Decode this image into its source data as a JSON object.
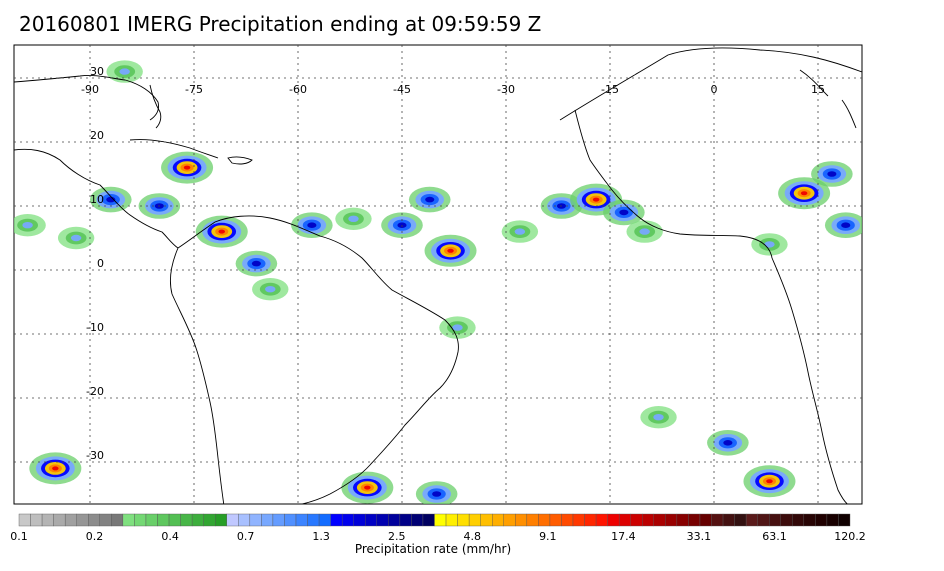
{
  "title": "20160801 IMERG Precipitation ending at 09:59:59 Z",
  "map": {
    "lon_labels": [
      "-90",
      "-75",
      "-60",
      "-45",
      "-30",
      "-15",
      "0",
      "15"
    ],
    "lat_labels": [
      "30",
      "20",
      "10",
      "0",
      "-10",
      "-20",
      "-30"
    ],
    "lon_values": [
      -90,
      -75,
      -60,
      -45,
      -30,
      -15,
      0,
      15
    ],
    "lat_values": [
      30,
      20,
      10,
      0,
      -10,
      -20,
      -30
    ]
  },
  "colorbar": {
    "label": "Precipitation rate (mm/hr)",
    "tick_labels": [
      "0.1",
      "0.2",
      "0.4",
      "0.7",
      "1.3",
      "2.5",
      "4.8",
      "9.1",
      "17.4",
      "33.1",
      "63.1",
      "120.2"
    ],
    "colors": [
      "#c8c8c8",
      "#bebebe",
      "#b4b4b4",
      "#aaaaaa",
      "#a0a0a0",
      "#969696",
      "#8c8c8c",
      "#828282",
      "#787878",
      "#7fe07f",
      "#74d874",
      "#69cf69",
      "#5ec75e",
      "#53bf53",
      "#48b648",
      "#3dae3d",
      "#32a632",
      "#279e27",
      "#c0c8ff",
      "#a8c0ff",
      "#90b4ff",
      "#78a8ff",
      "#649cff",
      "#5090ff",
      "#3c84ff",
      "#2878ff",
      "#146cff",
      "#0000ff",
      "#0000ec",
      "#0000d8",
      "#0000c4",
      "#0000b0",
      "#00009c",
      "#000088",
      "#000074",
      "#000060",
      "#ffff00",
      "#ffef00",
      "#ffdf00",
      "#ffcf00",
      "#ffbf00",
      "#ffaf00",
      "#ff9f00",
      "#ff8f00",
      "#ff7f00",
      "#ff6e00",
      "#ff5c00",
      "#ff4a00",
      "#ff3800",
      "#ff2600",
      "#ff1400",
      "#ee0000",
      "#dd0000",
      "#cc0000",
      "#bb0000",
      "#aa0000",
      "#990000",
      "#880000",
      "#770000",
      "#660000",
      "#551111",
      "#441111",
      "#331111",
      "#5a1a1a",
      "#501515",
      "#461010",
      "#3c0c0c",
      "#320808",
      "#280404",
      "#200000",
      "#180000",
      "#100000"
    ]
  },
  "precip_cells": [
    {
      "lon": -76,
      "lat": 16,
      "intensity": "heavy"
    },
    {
      "lon": -80,
      "lat": 10,
      "intensity": "moderate"
    },
    {
      "lon": -87,
      "lat": 11,
      "intensity": "moderate"
    },
    {
      "lon": -71,
      "lat": 6,
      "intensity": "heavy"
    },
    {
      "lon": -66,
      "lat": 1,
      "intensity": "moderate"
    },
    {
      "lon": -64,
      "lat": -3,
      "intensity": "light"
    },
    {
      "lon": -58,
      "lat": 7,
      "intensity": "moderate"
    },
    {
      "lon": -52,
      "lat": 8,
      "intensity": "light"
    },
    {
      "lon": -45,
      "lat": 7,
      "intensity": "moderate"
    },
    {
      "lon": -41,
      "lat": 11,
      "intensity": "moderate"
    },
    {
      "lon": -38,
      "lat": 3,
      "intensity": "heavy"
    },
    {
      "lon": -28,
      "lat": 6,
      "intensity": "light"
    },
    {
      "lon": -22,
      "lat": 10,
      "intensity": "moderate"
    },
    {
      "lon": -17,
      "lat": 11,
      "intensity": "heavy"
    },
    {
      "lon": -13,
      "lat": 9,
      "intensity": "moderate"
    },
    {
      "lon": -10,
      "lat": 6,
      "intensity": "light"
    },
    {
      "lon": 13,
      "lat": 12,
      "intensity": "heavy"
    },
    {
      "lon": 17,
      "lat": 15,
      "intensity": "moderate"
    },
    {
      "lon": 19,
      "lat": 7,
      "intensity": "moderate"
    },
    {
      "lon": 8,
      "lat": 4,
      "intensity": "light"
    },
    {
      "lon": -92,
      "lat": 5,
      "intensity": "light"
    },
    {
      "lon": -99,
      "lat": 7,
      "intensity": "light"
    },
    {
      "lon": -95,
      "lat": -31,
      "intensity": "heavy"
    },
    {
      "lon": -50,
      "lat": -34,
      "intensity": "heavy"
    },
    {
      "lon": -40,
      "lat": -35,
      "intensity": "moderate"
    },
    {
      "lon": 2,
      "lat": -27,
      "intensity": "moderate"
    },
    {
      "lon": -8,
      "lat": -23,
      "intensity": "light"
    },
    {
      "lon": 8,
      "lat": -33,
      "intensity": "heavy"
    },
    {
      "lon": -37,
      "lat": -9,
      "intensity": "light"
    },
    {
      "lon": -85,
      "lat": 31,
      "intensity": "light"
    }
  ]
}
